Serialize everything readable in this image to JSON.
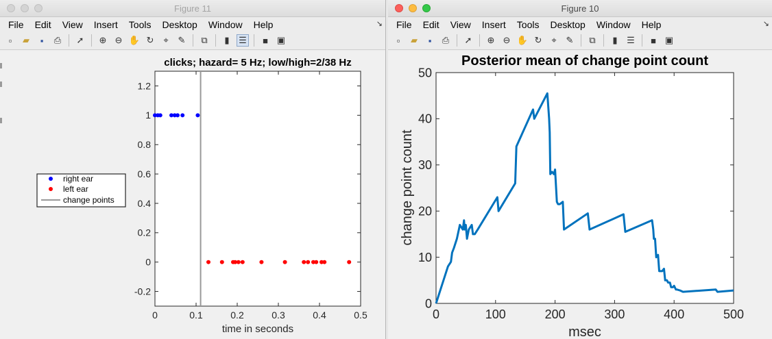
{
  "colors": {
    "blue": "#0000ff",
    "red": "#ff0000",
    "line": "#0072bd",
    "change_line": "#999999"
  },
  "menu_items": [
    "File",
    "Edit",
    "View",
    "Insert",
    "Tools",
    "Desktop",
    "Window",
    "Help"
  ],
  "toolbar_icons": [
    "new-figure-icon",
    "open-file-icon",
    "save-icon",
    "print-icon",
    "pointer-icon",
    "zoom-in-icon",
    "zoom-out-icon",
    "pan-hand-icon",
    "rotate-3d-icon",
    "data-cursor-icon",
    "brush-icon",
    "link-plot-icon",
    "colorbar-icon",
    "legend-icon",
    "hide-tools-icon",
    "show-tools-icon"
  ],
  "fig11": {
    "window_title": "Figure 11",
    "corner": "↘",
    "chart_data": {
      "type": "scatter",
      "title": "clicks; hazard= 5 Hz; low/high=2/38 Hz",
      "xlabel": "time in seconds",
      "ylabel": "",
      "xlim": [
        0,
        0.5
      ],
      "ylim": [
        -0.3,
        1.3
      ],
      "xticks": [
        "0",
        "0.1",
        "0.2",
        "0.3",
        "0.4",
        "0.5"
      ],
      "yticks": [
        "-0.2",
        "0",
        "0.2",
        "0.4",
        "0.6",
        "0.8",
        "1",
        "1.2"
      ],
      "series": [
        {
          "name": "right ear",
          "x": [
            0.0,
            0.007,
            0.013,
            0.04,
            0.048,
            0.055,
            0.067,
            0.104
          ],
          "y": [
            1,
            1,
            1,
            1,
            1,
            1,
            1,
            1
          ]
        },
        {
          "name": "left ear",
          "x": [
            0.13,
            0.163,
            0.19,
            0.195,
            0.203,
            0.213,
            0.259,
            0.316,
            0.362,
            0.372,
            0.385,
            0.392,
            0.405,
            0.412,
            0.472
          ],
          "y": [
            0,
            0,
            0,
            0,
            0,
            0,
            0,
            0,
            0,
            0,
            0,
            0,
            0,
            0,
            0
          ]
        },
        {
          "name": "change points",
          "x": [
            0.111,
            0.111
          ],
          "y": [
            -0.3,
            1.3
          ]
        }
      ],
      "legend_position": "outside-left"
    }
  },
  "fig10": {
    "window_title": "Figure 10",
    "corner": "↘",
    "chart_data": {
      "type": "line",
      "title": "Posterior mean of change point count",
      "xlabel": "msec",
      "ylabel": "change point count",
      "xlim": [
        0,
        500
      ],
      "ylim": [
        0,
        50
      ],
      "xticks": [
        "0",
        "100",
        "200",
        "300",
        "400",
        "500"
      ],
      "yticks": [
        "0",
        "10",
        "20",
        "30",
        "40",
        "50"
      ],
      "series": [
        {
          "x": [
            0,
            5,
            10,
            15,
            20,
            25,
            27,
            30,
            35,
            40,
            45,
            47,
            48,
            50,
            52,
            55,
            60,
            62,
            65,
            70,
            103,
            105,
            133,
            135,
            163,
            165,
            187,
            190,
            191,
            192,
            195,
            198,
            200,
            203,
            205,
            208,
            213,
            215,
            255,
            258,
            315,
            318,
            363,
            365,
            366,
            368,
            370,
            373,
            375,
            378,
            380,
            383,
            385,
            388,
            390,
            393,
            395,
            398,
            400,
            403,
            405,
            410,
            415,
            470,
            473,
            500
          ],
          "y": [
            0,
            2,
            4,
            6,
            8,
            9,
            11,
            12,
            14,
            17,
            16,
            18,
            16,
            17,
            14,
            16,
            17,
            15,
            15,
            16,
            23,
            20,
            26,
            34,
            42,
            40,
            45.5,
            40,
            37,
            28,
            28.5,
            28,
            29,
            22,
            21.5,
            21.5,
            22,
            16,
            19.5,
            16,
            19.3,
            15.5,
            18,
            16,
            14,
            14,
            10,
            10.5,
            7,
            7,
            7,
            7.5,
            5,
            5,
            4.5,
            4.5,
            3.5,
            3.5,
            3.8,
            3,
            3,
            2.8,
            2.5,
            3,
            2.5,
            2.8
          ]
        }
      ]
    }
  }
}
